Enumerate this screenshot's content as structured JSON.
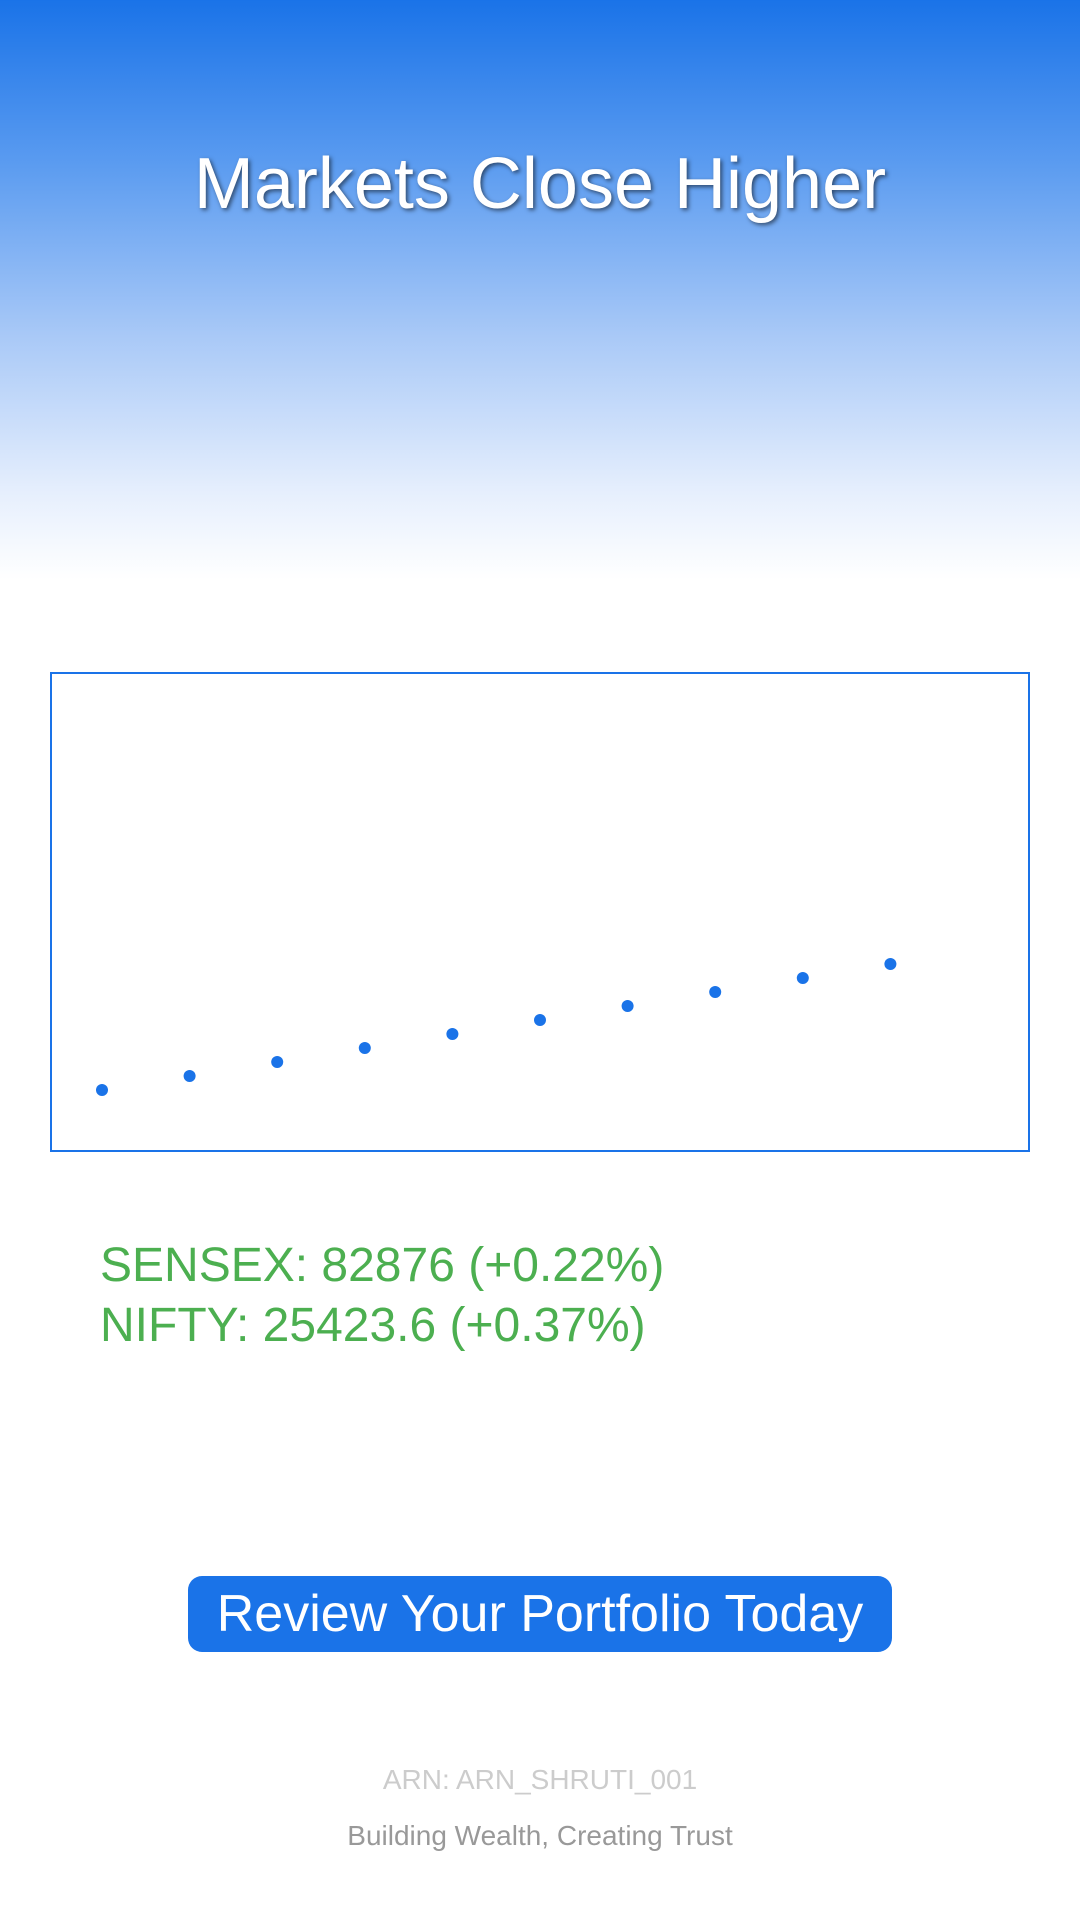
{
  "header": {
    "title": "Markets Close Higher"
  },
  "chart_data": {
    "type": "scatter",
    "title": "",
    "xlabel": "",
    "ylabel": "",
    "x": [
      1,
      2,
      3,
      4,
      5,
      6,
      7,
      8,
      9,
      10
    ],
    "values": [
      1,
      2,
      3,
      4,
      5,
      6,
      7,
      8,
      9,
      10
    ],
    "ylim": [
      0,
      30
    ],
    "grid": false,
    "legend": "none",
    "color": "#1a73e8"
  },
  "indices": {
    "sensex": "SENSEX: 82876 (+0.22%)",
    "nifty": "NIFTY: 25423.6 (+0.37%)"
  },
  "cta": {
    "label": "Review Your Portfolio Today"
  },
  "footer": {
    "arn": "ARN: ARN_SHRUTI_001",
    "tagline": "Building Wealth, Creating Trust"
  },
  "colors": {
    "accent": "#1a73e8",
    "positive": "#4caf50"
  }
}
